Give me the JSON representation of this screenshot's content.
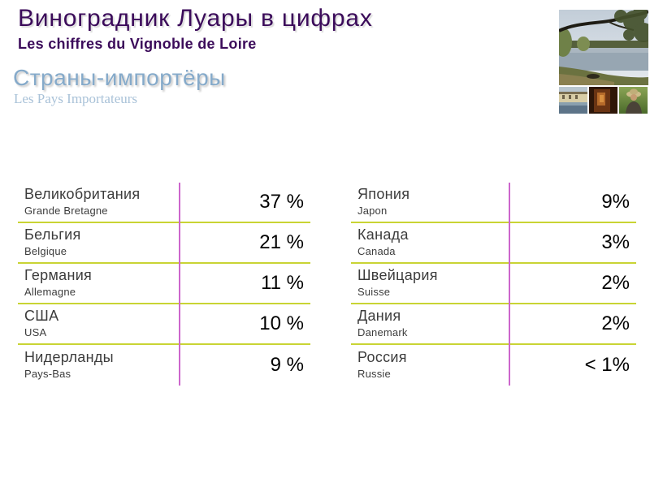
{
  "header": {
    "title": "Виноградник Луары в цифрах",
    "subtitle": "Les chiffres du Vignoble de Loire",
    "section_title": "Страны-импортёры",
    "section_subtitle": "Les Pays Importateurs"
  },
  "photos": {
    "main": "loire-river-landscape",
    "thumbs": [
      "waterside-building",
      "wine-cellar-interior",
      "vintner-in-hat"
    ]
  },
  "colors": {
    "title_text": "#3B0B5A",
    "section_text": "#85AACA",
    "section_subtext": "#A9C2D8",
    "row_divider": "#C9D434",
    "column_divider": "#CC66CC",
    "country_text": "#3C3C3C",
    "value_text": "#000000"
  },
  "tables": {
    "left": {
      "rows": [
        {
          "name_ru": "Великобритания",
          "name_fr": "Grande Bretagne",
          "value": "37 %"
        },
        {
          "name_ru": "Бельгия",
          "name_fr": "Belgique",
          "value": "21 %"
        },
        {
          "name_ru": "Германия",
          "name_fr": "Allemagne",
          "value": "11 %"
        },
        {
          "name_ru": "США",
          "name_fr": "USA",
          "value": "10 %"
        },
        {
          "name_ru": "Нидерланды",
          "name_fr": "Pays-Bas",
          "value": "9 %"
        }
      ]
    },
    "right": {
      "rows": [
        {
          "name_ru": "Япония",
          "name_fr": "Japon",
          "value": "9%"
        },
        {
          "name_ru": "Канада",
          "name_fr": "Canada",
          "value": "3%"
        },
        {
          "name_ru": "Швейцария",
          "name_fr": "Suisse",
          "value": "2%"
        },
        {
          "name_ru": "Дания",
          "name_fr": "Danemark",
          "value": "2%"
        },
        {
          "name_ru": "Россия",
          "name_fr": "Russie",
          "value": "< 1%"
        }
      ]
    }
  },
  "chart_data": {
    "type": "table",
    "title": "Страны-импортёры / Les Pays Importateurs",
    "unit": "%",
    "categories": [
      "Великобритания (Grande Bretagne)",
      "Бельгия (Belgique)",
      "Германия (Allemagne)",
      "США (USA)",
      "Нидерланды (Pays-Bas)",
      "Япония (Japon)",
      "Канада (Canada)",
      "Швейцария (Suisse)",
      "Дания (Danemark)",
      "Россия (Russie)"
    ],
    "values": [
      37,
      21,
      11,
      10,
      9,
      9,
      3,
      2,
      2,
      "<1"
    ]
  }
}
